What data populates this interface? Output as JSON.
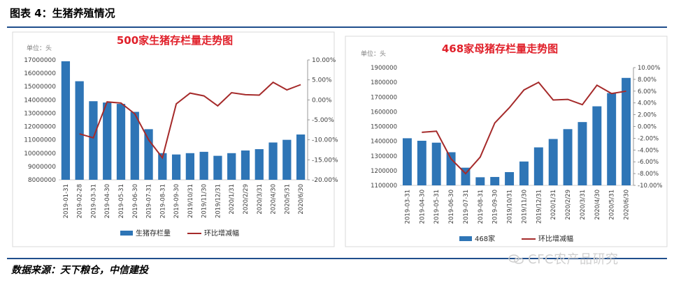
{
  "figure": {
    "title": "图表 4：生猪养殖情况",
    "source": "数据来源：天下粮仓，中信建投",
    "watermark": "CFC农产品研究"
  },
  "chart_data": [
    {
      "type": "bar",
      "title": "500家生猪存栏量走势图",
      "unit_label": "单位：头",
      "categories": [
        "2019-01-31",
        "2019-02-28",
        "2019-03-31",
        "2019-04-30",
        "2019-05-31",
        "2019-06-30",
        "2019-07-31",
        "2019-08-31",
        "2019-09-30",
        "2019/10/31",
        "2019/11/30",
        "2019/12/31",
        "2020/1/31",
        "2020/2/29",
        "2020/3/31",
        "2020/4/30",
        "2020/5/31",
        "2020/6/30"
      ],
      "left_axis": {
        "ylim": [
          8000000,
          17000000
        ],
        "ticks": [
          "8000000",
          "9000000",
          "10000000",
          "11000000",
          "12000000",
          "13000000",
          "14000000",
          "15000000",
          "16000000",
          "17000000"
        ]
      },
      "right_axis": {
        "ylim": [
          -20,
          10
        ],
        "ticks": [
          "-20.00%",
          "-15.00%",
          "-10.00%",
          "-5.00%",
          "0.00%",
          "5.00%",
          "10.00%"
        ]
      },
      "series": [
        {
          "name": "生猪存栏量",
          "kind": "bar",
          "axis": "left",
          "color": "#2e75b6",
          "values": [
            16900000,
            15400000,
            13900000,
            13800000,
            13700000,
            13100000,
            11800000,
            10000000,
            9900000,
            10000000,
            10100000,
            9800000,
            10000000,
            10200000,
            10300000,
            10800000,
            11000000,
            11400000
          ]
        },
        {
          "name": "环比增减幅",
          "kind": "line",
          "axis": "right",
          "color": "#a52a2a",
          "values": [
            null,
            -8.5,
            -9.5,
            -0.5,
            -0.8,
            -3.5,
            -10.0,
            -14.5,
            -1.0,
            1.7,
            1.0,
            -1.5,
            1.8,
            1.3,
            1.2,
            4.4,
            2.5,
            3.8
          ]
        }
      ],
      "legend_position": "bottom"
    },
    {
      "type": "bar",
      "title": "468家母猪存栏量走势图",
      "unit_label": "单位：头",
      "categories": [
        "2019-03-31",
        "2019-04-30",
        "2019-05-31",
        "2019-06-30",
        "2019-07-31",
        "2019-08-31",
        "2019-09-30",
        "2019/10/31",
        "2019/11/30",
        "2019/12/31",
        "2020/1/31",
        "2020/2/29",
        "2020/3/31",
        "2020/4/30",
        "2020/5/31",
        "2020/6/30"
      ],
      "left_axis": {
        "ylim": [
          1100000,
          1900000
        ],
        "ticks": [
          "1100000",
          "1200000",
          "1300000",
          "1400000",
          "1500000",
          "1600000",
          "1700000",
          "1800000",
          "1900000"
        ]
      },
      "right_axis": {
        "ylim": [
          -10,
          10
        ],
        "ticks": [
          "-10.00%",
          "-8.00%",
          "-6.00%",
          "-4.00%",
          "-2.00%",
          "0.00%",
          "2.00%",
          "4.00%",
          "6.00%",
          "8.00%",
          "10.00%"
        ]
      },
      "series": [
        {
          "name": "468家",
          "kind": "bar",
          "axis": "left",
          "color": "#2e75b6",
          "values": [
            1420000,
            1403000,
            1390000,
            1325000,
            1220000,
            1155000,
            1157000,
            1190000,
            1262000,
            1358000,
            1415000,
            1482000,
            1530000,
            1637000,
            1727000,
            1830000
          ]
        },
        {
          "name": "环比增减幅",
          "kind": "line",
          "axis": "right",
          "color": "#a52a2a",
          "values": [
            null,
            -1.0,
            -0.8,
            -5.5,
            -8.0,
            -5.2,
            0.6,
            3.2,
            6.2,
            7.5,
            4.5,
            4.6,
            3.7,
            7.0,
            5.6,
            6.0
          ]
        }
      ],
      "legend_position": "bottom"
    }
  ]
}
